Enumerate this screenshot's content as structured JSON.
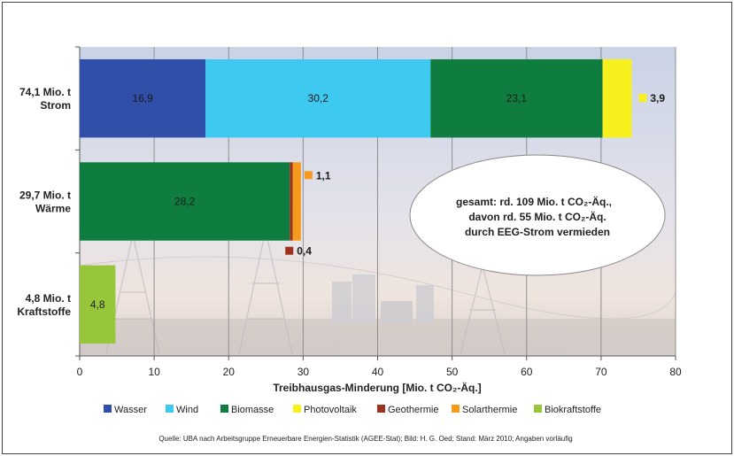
{
  "colors": {
    "Wasser": "#2f4fa8",
    "Wind": "#3ec9f0",
    "Biomasse": "#0f7d3f",
    "Photovoltaik": "#f7f01c",
    "Geothermie": "#9e3220",
    "Solarthermie": "#f59a1c",
    "Biokraftstoffe": "#98c63a"
  },
  "chart_data": {
    "type": "bar",
    "orientation": "horizontal",
    "stacked": true,
    "xlabel": "Treibhausgas-Minderung  [Mio. t CO₂-Äq.]",
    "xlim": [
      0,
      80
    ],
    "xticks": [
      0,
      10,
      20,
      30,
      40,
      50,
      60,
      70,
      80
    ],
    "grid": true,
    "legend_position": "bottom",
    "categories": [
      {
        "label_line1": "74,1 Mio. t",
        "label_line2": "Strom"
      },
      {
        "label_line1": "29,7 Mio. t",
        "label_line2": "Wärme"
      },
      {
        "label_line1": "4,8 Mio. t",
        "label_line2": "Kraftstoffe"
      }
    ],
    "rows": [
      [
        {
          "series": "Wasser",
          "value": 16.9,
          "label": "16,9",
          "label_pos": "inside"
        },
        {
          "series": "Wind",
          "value": 30.2,
          "label": "30,2",
          "label_pos": "inside"
        },
        {
          "series": "Biomasse",
          "value": 23.1,
          "label": "23,1",
          "label_pos": "inside"
        },
        {
          "series": "Photovoltaik",
          "value": 3.9,
          "label": "3,9",
          "label_pos": "outside-right"
        }
      ],
      [
        {
          "series": "Biomasse",
          "value": 28.2,
          "label": "28,2",
          "label_pos": "inside"
        },
        {
          "series": "Geothermie",
          "value": 0.4,
          "label": "0,4",
          "label_pos": "below"
        },
        {
          "series": "Solarthermie",
          "value": 1.1,
          "label": "1,1",
          "label_pos": "above"
        }
      ],
      [
        {
          "series": "Biokraftstoffe",
          "value": 4.8,
          "label": "4,8",
          "label_pos": "inside"
        }
      ]
    ],
    "legend": [
      "Wasser",
      "Wind",
      "Biomasse",
      "Photovoltaik",
      "Geothermie",
      "Solarthermie",
      "Biokraftstoffe"
    ],
    "annotation": {
      "line1": "gesamt: rd. 109 Mio. t CO₂-Äq.,",
      "line2": "davon rd. 55 Mio. t CO₂-Äq.",
      "line3": "durch EEG-Strom vermieden"
    },
    "source": "Quelle: UBA nach Arbeitsgruppe Erneuerbare Energien-Statistik (AGEE-Stat); Bild: H. G. Oed; Stand: März 2010; Angaben vorläufig"
  }
}
